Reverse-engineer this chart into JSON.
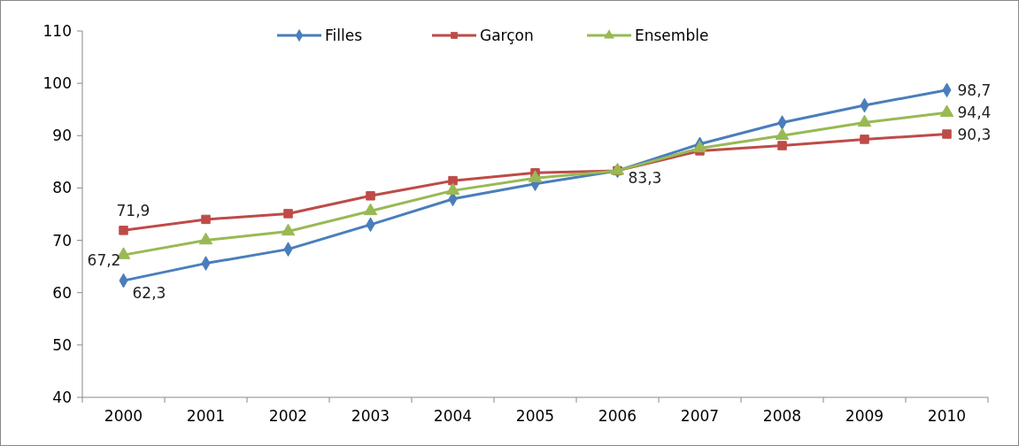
{
  "chart_data": {
    "type": "line",
    "categories": [
      "2000",
      "2001",
      "2002",
      "2003",
      "2004",
      "2005",
      "2006",
      "2007",
      "2008",
      "2009",
      "2010"
    ],
    "ylim": [
      40,
      110
    ],
    "yticks": [
      40,
      50,
      60,
      70,
      80,
      90,
      100,
      110
    ],
    "grid": false,
    "legend": "top",
    "line_style": "solid",
    "series": [
      {
        "name": "Filles",
        "color": "#4a7ebb",
        "marker": "diamond",
        "values": [
          62.3,
          65.6,
          68.3,
          73.0,
          77.9,
          80.8,
          83.3,
          88.4,
          92.5,
          95.8,
          98.7
        ],
        "value_labels": [
          "62,3",
          null,
          null,
          null,
          null,
          null,
          null,
          null,
          null,
          null,
          "98,7"
        ]
      },
      {
        "name": "Garçon",
        "color": "#be4b48",
        "marker": "square",
        "values": [
          71.9,
          74.0,
          75.1,
          78.5,
          81.4,
          82.9,
          83.3,
          87.1,
          88.1,
          89.3,
          90.3
        ],
        "value_labels": [
          "71,9",
          null,
          null,
          null,
          null,
          null,
          "83,3",
          null,
          null,
          null,
          "90,3"
        ]
      },
      {
        "name": "Ensemble",
        "color": "#98b954",
        "marker": "triangle",
        "values": [
          67.2,
          70.0,
          71.7,
          75.6,
          79.5,
          81.9,
          83.3,
          87.6,
          90.0,
          92.5,
          94.4
        ],
        "value_labels": [
          "67,2",
          null,
          null,
          null,
          null,
          null,
          null,
          null,
          null,
          null,
          "94,4"
        ]
      }
    ]
  }
}
